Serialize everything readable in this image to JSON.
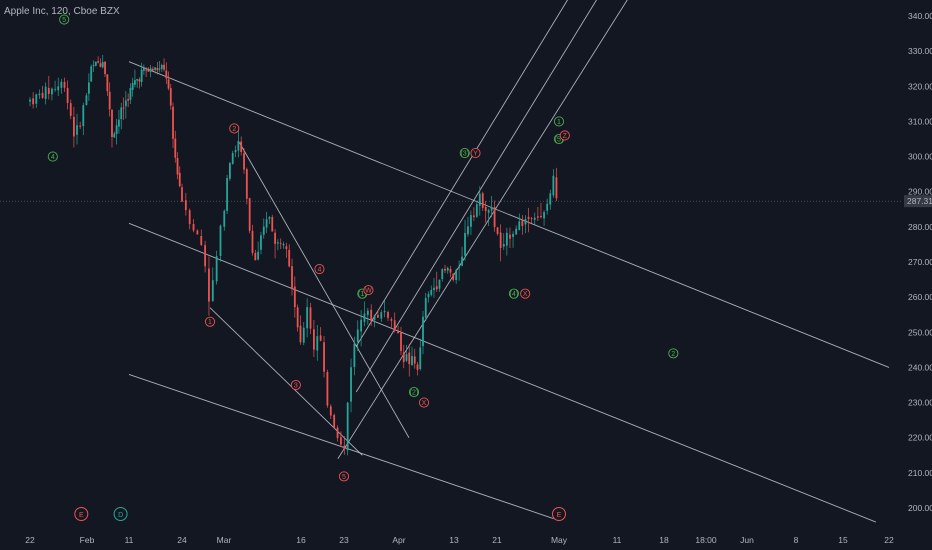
{
  "header": {
    "title": "Apple Inc, 120, Cboe BZX"
  },
  "chart_data": {
    "type": "candlestick",
    "title": "Apple Inc, 120, Cboe BZX",
    "y_axis": {
      "ticks": [
        "340.00",
        "330.00",
        "320.00",
        "310.00",
        "300.00",
        "290.00",
        "280.00",
        "270.00",
        "260.00",
        "250.00",
        "240.00",
        "230.00",
        "220.00",
        "210.00",
        "200.00"
      ],
      "ylim": [
        196,
        343
      ]
    },
    "x_axis": {
      "ticks": [
        "22",
        "Feb",
        "11",
        "24",
        "Mar",
        "16",
        "23",
        "Apr",
        "13",
        "21",
        "May",
        "11",
        "18",
        "18:00",
        "Jun",
        "8",
        "15",
        "22"
      ]
    },
    "last_price": "287.31",
    "price_path": [
      [
        "Jan 22",
        316
      ],
      [
        "Jan 28",
        321
      ],
      [
        "Jan 30",
        305
      ],
      [
        "Feb 2",
        325
      ],
      [
        "Feb 5",
        328
      ],
      [
        "Feb 7",
        306
      ],
      [
        "Feb 11",
        318
      ],
      [
        "Feb 14",
        324
      ],
      [
        "Feb 18",
        325
      ],
      [
        "Feb 20",
        324
      ],
      [
        "Feb 21",
        316
      ],
      [
        "Feb 22",
        302
      ],
      [
        "Feb 24",
        288
      ],
      [
        "Feb 26",
        278
      ],
      [
        "Feb 27",
        274
      ],
      [
        "Feb 28",
        258
      ],
      [
        "Mar 1",
        286
      ],
      [
        "Mar 2",
        300
      ],
      [
        "Mar 4",
        304
      ],
      [
        "Mar 5",
        294
      ],
      [
        "Mar 6",
        279
      ],
      [
        "Mar 7",
        270
      ],
      [
        "Mar 9",
        280
      ],
      [
        "Mar 10",
        284
      ],
      [
        "Mar 11",
        274
      ],
      [
        "Mar 13",
        278
      ],
      [
        "Mar 16",
        245
      ],
      [
        "Mar 17",
        258
      ],
      [
        "Mar 18",
        246
      ],
      [
        "Mar 19",
        250
      ],
      [
        "Mar 20",
        232
      ],
      [
        "Mar 23",
        215
      ],
      [
        "Mar 24",
        240
      ],
      [
        "Mar 26",
        258
      ],
      [
        "Mar 27",
        254
      ],
      [
        "Mar 30",
        256
      ],
      [
        "Apr 1",
        248
      ],
      [
        "Apr 2",
        243
      ],
      [
        "Apr 5",
        240
      ],
      [
        "Apr 6",
        258
      ],
      [
        "Apr 8",
        263
      ],
      [
        "Apr 9",
        266
      ],
      [
        "Apr 11",
        268
      ],
      [
        "Apr 12",
        264
      ],
      [
        "Apr 13",
        270
      ],
      [
        "Apr 15",
        284
      ],
      [
        "Apr 17",
        288
      ],
      [
        "Apr 19",
        284
      ],
      [
        "Apr 20",
        278
      ],
      [
        "Apr 21",
        272
      ],
      [
        "Apr 22",
        278
      ],
      [
        "Apr 24",
        281
      ],
      [
        "Apr 27",
        284
      ],
      [
        "Apr 28",
        281
      ],
      [
        "Apr 29",
        287
      ],
      [
        "Apr 30",
        293
      ],
      [
        "May 1",
        287
      ]
    ],
    "wave_labels": [
      {
        "text": "5",
        "color": "#4caf50",
        "date": "Jan 28",
        "price": 339
      },
      {
        "text": "4",
        "color": "#4caf50",
        "date": "Jan 26",
        "price": 300
      },
      {
        "text": "2",
        "color": "#ef5350",
        "date": "Mar 3",
        "price": 308
      },
      {
        "text": "1",
        "color": "#ef5350",
        "date": "Feb 28",
        "price": 253
      },
      {
        "text": "4",
        "color": "#ef5350",
        "date": "Mar 19",
        "price": 268
      },
      {
        "text": "3",
        "color": "#ef5350",
        "date": "Mar 15",
        "price": 235
      },
      {
        "text": "5",
        "color": "#ef5350",
        "date": "Mar 23",
        "price": 209
      },
      {
        "text": "(1)",
        "color": "#4caf50",
        "date": "Mar 26",
        "price": 261
      },
      {
        "text": "W",
        "color": "#ef5350",
        "date": "Mar 27",
        "price": 262
      },
      {
        "text": "(2)",
        "color": "#4caf50",
        "date": "Apr 4",
        "price": 233
      },
      {
        "text": "X",
        "color": "#ef5350",
        "date": "Apr 6",
        "price": 230
      },
      {
        "text": "(3)",
        "color": "#4caf50",
        "date": "Apr 14",
        "price": 301
      },
      {
        "text": "Y",
        "color": "#ef5350",
        "date": "Apr 16",
        "price": 301
      },
      {
        "text": "(4)",
        "color": "#4caf50",
        "date": "Apr 23",
        "price": 261
      },
      {
        "text": "X",
        "color": "#ef5350",
        "date": "Apr 25",
        "price": 261
      },
      {
        "text": "1",
        "color": "#4caf50",
        "date": "May 1",
        "price": 310
      },
      {
        "text": "(5)",
        "color": "#4caf50",
        "date": "May 1",
        "price": 305
      },
      {
        "text": "Z",
        "color": "#ef5350",
        "date": "May 2",
        "price": 306
      },
      {
        "text": "2",
        "color": "#4caf50",
        "date": "May 19",
        "price": 244
      }
    ],
    "bottom_labels": [
      {
        "text": "E",
        "color": "#ef5350",
        "date": "Jan 31"
      },
      {
        "text": "D",
        "color": "#26a69a",
        "date": "Feb 9"
      },
      {
        "text": "E",
        "color": "#ef5350",
        "date": "May 1"
      }
    ],
    "trendlines": [
      {
        "from": [
          "Feb 11",
          327
        ],
        "to": [
          "Jun 22",
          240
        ]
      },
      {
        "from": [
          "Feb 11",
          281
        ],
        "to": [
          "Jun 20",
          196
        ]
      },
      {
        "from": [
          "Feb 11",
          238
        ],
        "to": [
          "Apr 30",
          197
        ]
      },
      {
        "from": [
          "Feb 28",
          257
        ],
        "to": [
          "Mar 26",
          215
        ]
      },
      {
        "from": [
          "Mar 4",
          304
        ],
        "to": [
          "Apr 3",
          220
        ]
      },
      {
        "from": [
          "Mar 25",
          246
        ],
        "to": [
          "May 3",
          346
        ]
      },
      {
        "from": [
          "Mar 25",
          233
        ],
        "to": [
          "May 8",
          346
        ]
      },
      {
        "from": [
          "Mar 22",
          214
        ],
        "to": [
          "May 13",
          346
        ]
      }
    ]
  }
}
